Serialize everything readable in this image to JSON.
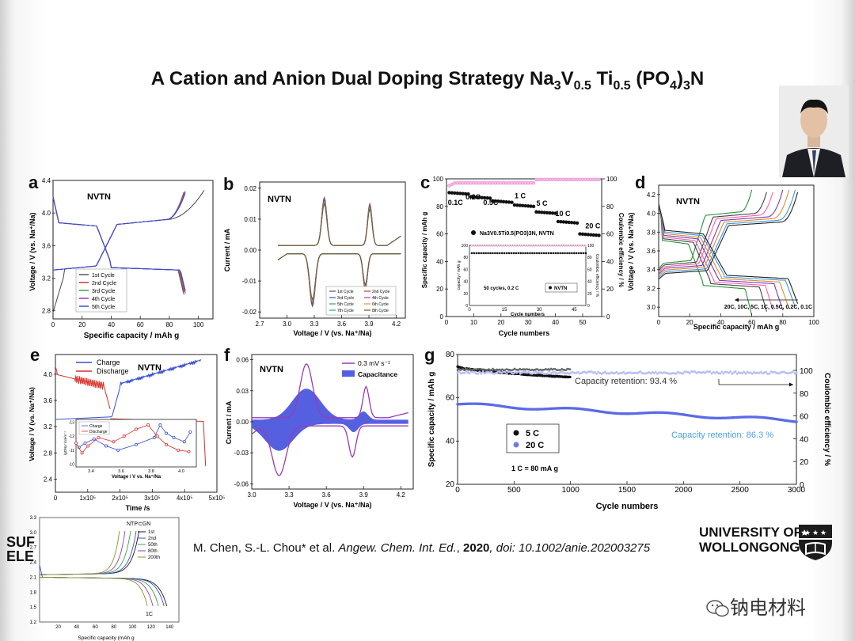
{
  "title": {
    "main": "A Cation and Anion Dual Doping Strategy Na",
    "parts": [
      "3",
      "V",
      "0.5",
      " Ti",
      "0.5",
      " (PO",
      "4",
      ")",
      "3",
      "N"
    ]
  },
  "panels": {
    "a": "a",
    "b": "b",
    "c": "c",
    "d": "d",
    "e": "e",
    "f": "f",
    "g": "g"
  },
  "caption": {
    "authors": "M. Chen, S.-L. Chou* et al. ",
    "journal": "Angew. Chem. Int. Ed.",
    "sep": ", ",
    "year": "2020",
    "doi": ", doi: 10.1002/anie.202003275"
  },
  "logo": {
    "line1": "UNIVERSITY OF",
    "line2": "WOLLONGONG"
  },
  "watermark": "钠电材料",
  "left_cut": {
    "line1": "SUF",
    "line2": "ELE"
  },
  "colors": {
    "blue": "#3a4fd0",
    "red": "#d8302a",
    "purple": "#9b3bb5",
    "green": "#38a34a",
    "orange": "#e8912a",
    "pink": "#ff6fb7",
    "gray": "#555555"
  },
  "chart_data": [
    {
      "id": "a",
      "type": "line",
      "label": "NVTN",
      "xlabel": "Specific capacity / mAh g",
      "ylabel": "Voltage / V (vs. Na⁺/Na)",
      "xticks": [
        "0",
        "20",
        "40",
        "60",
        "80",
        "100"
      ],
      "yticks": [
        "2.8",
        "3.2",
        "3.6",
        "4.0",
        "4.4"
      ],
      "xlim": [
        0,
        110
      ],
      "ylim": [
        2.7,
        4.4
      ],
      "legend": [
        "1st Cycle",
        "2nd Cycle",
        "3rd Cycle",
        "4th Cycle",
        "5th Cycle"
      ]
    },
    {
      "id": "b",
      "type": "line",
      "label": "NVTN",
      "xlabel": "Voltage / V (vs. Na⁺/Na)",
      "ylabel": "Current / mA",
      "xticks": [
        "2.7",
        "3.0",
        "3.3",
        "3.6",
        "3.9",
        "4.2"
      ],
      "yticks": [
        "-0.02",
        "-0.01",
        "0.00",
        "0.01",
        "0.02"
      ],
      "xlim": [
        2.7,
        4.3
      ],
      "ylim": [
        -0.022,
        0.022
      ],
      "legend": [
        "1st Cycle",
        "2nd Cycle",
        "3rd Cycle",
        "4th Cycle",
        "5th Cycle",
        "6th Cycle",
        "7th Cycle",
        "8th Cycle"
      ]
    },
    {
      "id": "c",
      "type": "scatter",
      "xlabel": "Cycle numbers",
      "ylabel": "Specific capacity / mAh g",
      "y2label": "Coulombic efficiency / %",
      "xticks": [
        "0",
        "10",
        "20",
        "30",
        "40",
        "50"
      ],
      "yticks": [
        "0",
        "20",
        "40",
        "60",
        "80",
        "100"
      ],
      "y2ticks": [
        "0",
        "20",
        "40",
        "60",
        "80",
        "100"
      ],
      "xlim": [
        0,
        57
      ],
      "ylim": [
        0,
        100
      ],
      "rates": [
        "0.1C",
        "0.2C",
        "0.5C",
        "1 C",
        "5 C",
        "10 C",
        "20 C"
      ],
      "rate_values": [
        90,
        87,
        84,
        81,
        76,
        69,
        60
      ],
      "legend": "Na3V0.5Ti0.5(PO3)3N, NVTN",
      "inset": {
        "label": "50 cycles, 0.2 C",
        "legend": "NVTN",
        "xlabel": "Cycle numbers",
        "ylabel": "capacity / mAh g",
        "y2label": "Coulombic efficiency / %",
        "xticks": [
          "0",
          "15",
          "30",
          "45"
        ],
        "yticks": [
          "0",
          "20",
          "40",
          "60",
          "80",
          "100"
        ],
        "y2ticks": [
          "0",
          "20",
          "40",
          "60",
          "80",
          "100"
        ],
        "value": 87,
        "ce": 99
      }
    },
    {
      "id": "d",
      "type": "line",
      "label": "NVTN",
      "xlabel": "Specific capacity / mAh g",
      "ylabel": "Voltage / V (vs. Na⁺/Na)",
      "xticks": [
        "0",
        "20",
        "40",
        "60",
        "80",
        "100"
      ],
      "yticks": [
        "3.0",
        "3.2",
        "3.4",
        "3.6",
        "3.8",
        "4.0",
        "4.2"
      ],
      "xlim": [
        0,
        100
      ],
      "ylim": [
        2.9,
        4.3
      ],
      "rates_text": "20C, 10C, 5C, 1C, 0.5C, 0.2C, 0.1C",
      "capacities": [
        60,
        70,
        74,
        80,
        84,
        88,
        90
      ]
    },
    {
      "id": "e",
      "type": "line",
      "label": "NVTN",
      "xlabel": "Time /s",
      "ylabel": "Voltage / V (vs. Na⁺/Na)",
      "xticks": [
        "0",
        "1x10⁵",
        "2x10⁵",
        "3x10⁵",
        "4x10⁵",
        "5x10⁵"
      ],
      "yticks": [
        "2.4",
        "2.8",
        "3.2",
        "3.6",
        "4.0"
      ],
      "xlim": [
        0,
        500000
      ],
      "ylim": [
        2.2,
        4.3
      ],
      "legend": [
        "Charge",
        "Discharge"
      ],
      "inset": {
        "xlabel": "Voltage / V  vs. Na⁺/Na",
        "ylabel": "lgDNa⁺/cm²s⁻¹",
        "xticks": [
          "3.4",
          "3.6",
          "3.8",
          "4.0"
        ],
        "yticks": [
          "-13",
          "-12",
          "-11",
          "-10"
        ],
        "legend": [
          "Charge",
          "Discharge"
        ],
        "charge": [
          [
            3.32,
            -11.2
          ],
          [
            3.36,
            -11.5
          ],
          [
            3.42,
            -11.8
          ],
          [
            3.5,
            -11.3
          ],
          [
            3.58,
            -11.0
          ],
          [
            3.7,
            -11.4
          ],
          [
            3.82,
            -11.9
          ],
          [
            3.86,
            -12.8
          ],
          [
            3.9,
            -12.2
          ],
          [
            3.95,
            -11.9
          ],
          [
            4.02,
            -11.6
          ],
          [
            4.06,
            -12.3
          ]
        ],
        "discharge": [
          [
            3.3,
            -11.5
          ],
          [
            3.34,
            -10.8
          ],
          [
            3.38,
            -11.3
          ],
          [
            3.45,
            -11.9
          ],
          [
            3.55,
            -11.6
          ],
          [
            3.62,
            -12.0
          ],
          [
            3.7,
            -12.5
          ],
          [
            3.78,
            -12.8
          ],
          [
            3.84,
            -12.0
          ],
          [
            3.9,
            -11.4
          ],
          [
            3.98,
            -11.0
          ],
          [
            4.05,
            -10.9
          ]
        ]
      }
    },
    {
      "id": "f",
      "type": "line",
      "label": "NVTN",
      "xlabel": "Voltage / V (vs. Na⁺/Na)",
      "ylabel": "Current / mA",
      "xticks": [
        "3.0",
        "3.3",
        "3.6",
        "3.9",
        "4.2"
      ],
      "yticks": [
        "-0.06",
        "-0.03",
        "0.00",
        "0.03",
        "0.06"
      ],
      "xlim": [
        3.0,
        4.3
      ],
      "ylim": [
        -0.065,
        0.065
      ],
      "legend": [
        "0.3 mV s⁻¹",
        "Capacitance"
      ]
    },
    {
      "id": "g",
      "type": "scatter",
      "xlabel": "Cycle numbers",
      "ylabel": "Specific capacity / mAh g",
      "y2label": "Coulombic efficiency / %",
      "xticks": [
        "0",
        "500",
        "1000",
        "1500",
        "2000",
        "2500",
        "3000"
      ],
      "yticks": [
        "20",
        "40",
        "60",
        "80"
      ],
      "y2ticks": [
        "0",
        "20",
        "40",
        "60",
        "80",
        "100"
      ],
      "xlim": [
        0,
        3000
      ],
      "ylim": [
        20,
        80
      ],
      "legend": [
        "5 C",
        "20 C"
      ],
      "note": "1 C = 80 mA g",
      "ret1": "Capacity retention: 93.4 %",
      "ret2": "Capacity retention: 86.3 %",
      "series": [
        {
          "name": "5 C",
          "start": 74.5,
          "end": 69.5,
          "cycles": 1000
        },
        {
          "name": "20 C",
          "start": 57,
          "end": 49.5,
          "cycles": 3000
        }
      ]
    },
    {
      "id": "h",
      "type": "line",
      "label": "NTP⊂GN",
      "xlabel": "Specific capacity (mAh g",
      "yticks": [
        "1.2",
        "1.5",
        "1.8",
        "2.1",
        "2.4",
        "2.7",
        "3.0",
        "3.3"
      ],
      "xticks": [
        "20",
        "40",
        "60",
        "80",
        "100",
        "120",
        "140"
      ],
      "xlim": [
        0,
        150
      ],
      "ylim": [
        1.2,
        3.3
      ],
      "legend": [
        "1st",
        "2nd",
        "50th",
        "80th",
        "200th"
      ],
      "rate": "1C"
    }
  ]
}
